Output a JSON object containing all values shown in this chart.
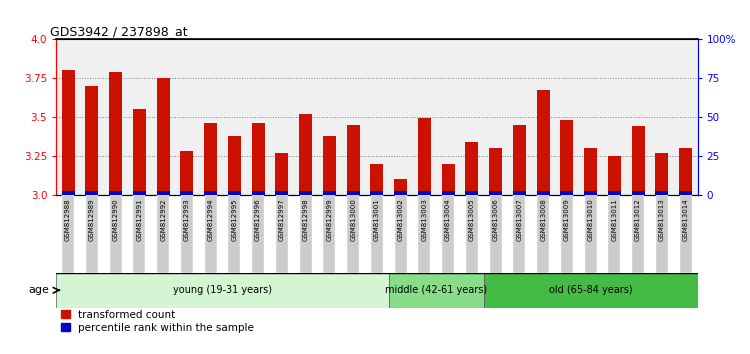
{
  "title": "GDS3942 / 237898_at",
  "samples": [
    "GSM812988",
    "GSM812989",
    "GSM812990",
    "GSM812991",
    "GSM812992",
    "GSM812993",
    "GSM812994",
    "GSM812995",
    "GSM812996",
    "GSM812997",
    "GSM812998",
    "GSM812999",
    "GSM813000",
    "GSM813001",
    "GSM813002",
    "GSM813003",
    "GSM813004",
    "GSM813005",
    "GSM813006",
    "GSM813007",
    "GSM813008",
    "GSM813009",
    "GSM813010",
    "GSM813011",
    "GSM813012",
    "GSM813013",
    "GSM813014"
  ],
  "transformed_count": [
    3.8,
    3.7,
    3.79,
    3.55,
    3.75,
    3.28,
    3.46,
    3.38,
    3.46,
    3.27,
    3.52,
    3.38,
    3.45,
    3.2,
    3.1,
    3.49,
    3.2,
    3.34,
    3.3,
    3.45,
    3.67,
    3.48,
    3.3,
    3.25,
    3.44,
    3.27,
    3.3
  ],
  "percentile_rank": [
    8,
    5,
    8,
    7,
    6,
    3,
    5,
    5,
    5,
    5,
    6,
    5,
    4,
    3,
    3,
    5,
    3,
    5,
    4,
    5,
    6,
    5,
    3,
    3,
    5,
    5,
    3
  ],
  "groups": [
    {
      "label": "young (19-31 years)",
      "start": 0,
      "end": 14,
      "color": "#d4f5d4"
    },
    {
      "label": "middle (42-61 years)",
      "start": 14,
      "end": 18,
      "color": "#88dd88"
    },
    {
      "label": "old (65-84 years)",
      "start": 18,
      "end": 27,
      "color": "#44bb44"
    }
  ],
  "ylim_left": [
    3.0,
    4.0
  ],
  "ylim_right": [
    0,
    100
  ],
  "yticks_left": [
    3.0,
    3.25,
    3.5,
    3.75,
    4.0
  ],
  "yticks_right": [
    0,
    25,
    50,
    75,
    100
  ],
  "ytick_labels_right": [
    "0",
    "25",
    "50",
    "75",
    "100%"
  ],
  "bar_color_red": "#cc1100",
  "bar_color_blue": "#0000cc",
  "bg_color": "#f0f0f0",
  "base_value": 3.0,
  "blue_bar_height": 0.025,
  "age_label": "age",
  "bar_width": 0.55
}
